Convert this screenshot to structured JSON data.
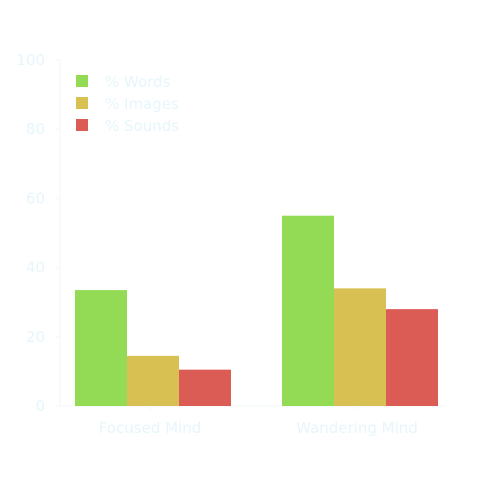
{
  "chart_data": {
    "type": "bar",
    "title": "",
    "xlabel": "",
    "ylabel": "",
    "ylim": [
      0,
      100
    ],
    "yticks": [
      0,
      20,
      40,
      60,
      80,
      100
    ],
    "categories": [
      "Focused Mind",
      "Wandering Mind"
    ],
    "series": [
      {
        "name": "% Words",
        "values": [
          33.5,
          55
        ],
        "color": "#93da55"
      },
      {
        "name": "% Images",
        "values": [
          14.5,
          34
        ],
        "color": "#d9c053"
      },
      {
        "name": "% Sounds",
        "values": [
          10.5,
          28
        ],
        "color": "#db5c55"
      }
    ],
    "legend": "top-left",
    "grid": false
  }
}
